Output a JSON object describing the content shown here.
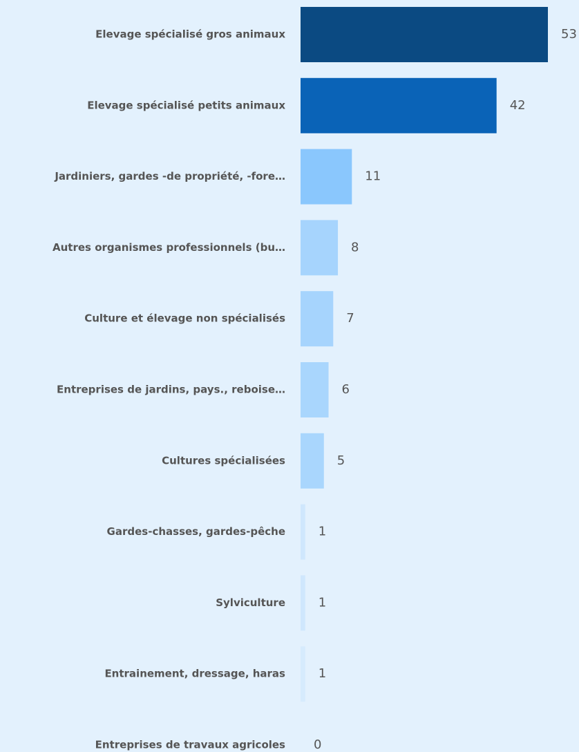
{
  "chart_data": {
    "type": "barh",
    "categories": [
      "Elevage spécialisé gros animaux",
      "Elevage spécialisé petits animaux",
      "Jardiniers, gardes -de propriété, -fore…",
      "Autres organismes professionnels (bu…",
      "Culture et élevage non spécialisés",
      "Entreprises de jardins, pays., reboise…",
      "Cultures spécialisées",
      "Gardes-chasses,  gardes-pêche",
      "Sylviculture",
      "Entrainement, dressage, haras",
      "Entreprises de travaux agricoles"
    ],
    "values": [
      53,
      42,
      11,
      8,
      7,
      6,
      5,
      1,
      1,
      1,
      0
    ],
    "colors": [
      "#0b4a82",
      "#0a63b7",
      "#8ac7fd",
      "#a6d4fd",
      "#a6d4fd",
      "#a9d6fd",
      "#a9d6fd",
      "#cfe7fd",
      "#cfe7fd",
      "#d6ebfd",
      "#d6ebfd"
    ]
  }
}
